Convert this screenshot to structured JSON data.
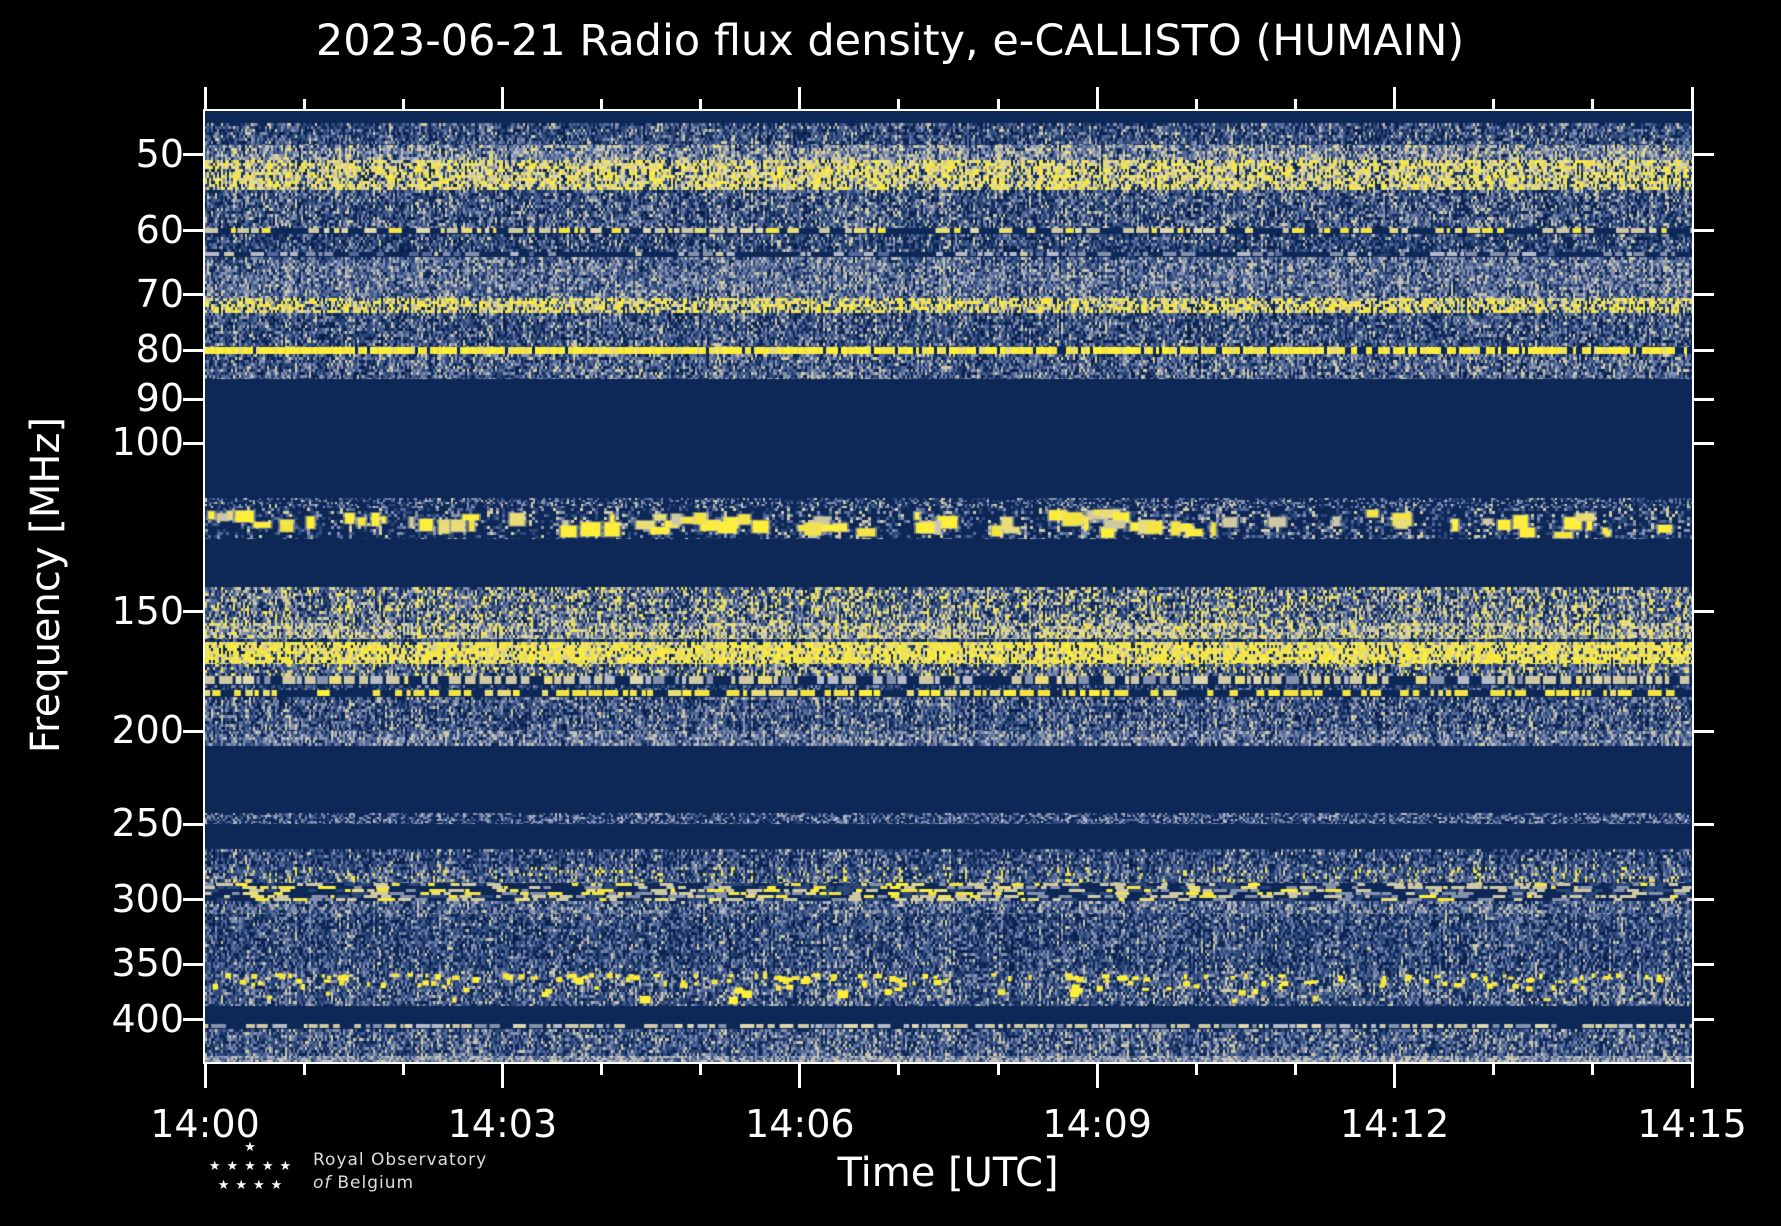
{
  "chart_data": {
    "type": "heatmap",
    "subtype": "radio-spectrogram",
    "title": "2023-06-21 Radio flux density, e-CALLISTO (HUMAIN)",
    "xlabel": "Time [UTC]",
    "ylabel": "Frequency [MHz]",
    "x_axis": {
      "major_ticks": [
        "14:00",
        "14:03",
        "14:06",
        "14:09",
        "14:12",
        "14:15"
      ],
      "major_tick_minutes": 3,
      "minor_tick_minutes": 1,
      "total_minutes": 15
    },
    "y_axis": {
      "scale": "log",
      "range_mhz": [
        45,
        443
      ],
      "tick_labels": [
        50,
        60,
        70,
        80,
        90,
        100,
        150,
        200,
        250,
        300,
        350,
        400
      ],
      "inverted": "frequency increases downward"
    },
    "background": "#000000",
    "frame_color": "#ffffff",
    "text_color": "#ffffff",
    "palette": {
      "dnavy": "#091d45",
      "navy": "#0d2757",
      "blue": "#2c4879",
      "steel": "#53689b",
      "grey": "#8591ac",
      "lgrey": "#b4bac7",
      "tan": "#cfc9a3",
      "ptan": "#e0d9b0",
      "pyel": "#e9dd78",
      "yel": "#f4e442",
      "byel": "#ffef3a"
    },
    "bands": [
      {
        "f0": 45.0,
        "f1": 46.3,
        "style": "solid",
        "color": "navy",
        "note": "dark strip at top edge"
      },
      {
        "f0": 46.3,
        "f1": 48.8,
        "style": "noise",
        "mix": [
          [
            "dnavy",
            5
          ],
          [
            "navy",
            28
          ],
          [
            "blue",
            27
          ],
          [
            "steel",
            19
          ],
          [
            "grey",
            16
          ],
          [
            "tan",
            5
          ]
        ]
      },
      {
        "f0": 48.8,
        "f1": 50.6,
        "style": "noise",
        "mix": [
          [
            "navy",
            8
          ],
          [
            "blue",
            16
          ],
          [
            "steel",
            18
          ],
          [
            "grey",
            24
          ],
          [
            "lgrey",
            10
          ],
          [
            "tan",
            18
          ],
          [
            "pyel",
            6
          ]
        ]
      },
      {
        "f0": 50.6,
        "f1": 54.4,
        "style": "noise",
        "note": "bright yellow streak band 51-54 MHz",
        "mix": [
          [
            "navy",
            9
          ],
          [
            "blue",
            13
          ],
          [
            "grey",
            12
          ],
          [
            "tan",
            16
          ],
          [
            "ptan",
            8
          ],
          [
            "pyel",
            14
          ],
          [
            "yel",
            21
          ],
          [
            "byel",
            7
          ]
        ]
      },
      {
        "f0": 54.4,
        "f1": 59.6,
        "style": "noise",
        "mix": [
          [
            "dnavy",
            4
          ],
          [
            "navy",
            25
          ],
          [
            "blue",
            25
          ],
          [
            "steel",
            19
          ],
          [
            "grey",
            17
          ],
          [
            "tan",
            10
          ]
        ]
      },
      {
        "f0": 59.6,
        "f1": 60.5,
        "style": "dashline",
        "note": "60 MHz dotted line",
        "mix": [
          [
            "skip",
            30
          ],
          [
            "tan",
            26
          ],
          [
            "ptan",
            14
          ],
          [
            "pyel",
            16
          ],
          [
            "yel",
            14
          ]
        ]
      },
      {
        "f0": 60.5,
        "f1": 63.2,
        "style": "noise",
        "mix": [
          [
            "dnavy",
            5
          ],
          [
            "navy",
            32
          ],
          [
            "blue",
            29
          ],
          [
            "steel",
            17
          ],
          [
            "grey",
            13
          ],
          [
            "tan",
            4
          ]
        ]
      },
      {
        "f0": 63.2,
        "f1": 63.9,
        "style": "dashline",
        "mix": [
          [
            "skip",
            34
          ],
          [
            "steel",
            14
          ],
          [
            "grey",
            30
          ],
          [
            "lgrey",
            16
          ],
          [
            "tan",
            6
          ]
        ]
      },
      {
        "f0": 63.9,
        "f1": 70.5,
        "style": "noise",
        "diag": true,
        "note": "herringbone interference 64-70 MHz",
        "mix": [
          [
            "navy",
            16
          ],
          [
            "blue",
            23
          ],
          [
            "steel",
            22
          ],
          [
            "grey",
            22
          ],
          [
            "lgrey",
            6
          ],
          [
            "tan",
            11
          ]
        ]
      },
      {
        "f0": 70.5,
        "f1": 73.2,
        "style": "noise",
        "note": "~72 MHz yellow dashes",
        "mix": [
          [
            "navy",
            12
          ],
          [
            "blue",
            15
          ],
          [
            "grey",
            12
          ],
          [
            "tan",
            14
          ],
          [
            "pyel",
            14
          ],
          [
            "yel",
            26
          ],
          [
            "byel",
            7
          ]
        ]
      },
      {
        "f0": 73.2,
        "f1": 79.4,
        "style": "noise",
        "mix": [
          [
            "dnavy",
            4
          ],
          [
            "navy",
            27
          ],
          [
            "blue",
            27
          ],
          [
            "steel",
            19
          ],
          [
            "grey",
            16
          ],
          [
            "tan",
            7
          ]
        ]
      },
      {
        "f0": 79.4,
        "f1": 80.7,
        "style": "line",
        "note": "80 MHz bright continuous carrier",
        "mix": [
          [
            "byel",
            55
          ],
          [
            "yel",
            35
          ],
          [
            "pyel",
            10
          ]
        ]
      },
      {
        "f0": 80.7,
        "f1": 85.7,
        "style": "noise",
        "mix": [
          [
            "dnavy",
            4
          ],
          [
            "navy",
            20
          ],
          [
            "blue",
            24
          ],
          [
            "steel",
            20
          ],
          [
            "grey",
            21
          ],
          [
            "tan",
            11
          ]
        ]
      },
      {
        "f0": 85.7,
        "f1": 114,
        "style": "solid",
        "color": "navy",
        "note": "FM broadcast notch, dark"
      },
      {
        "f0": 114,
        "f1": 117,
        "style": "noise",
        "cell": [
          2,
          2
        ],
        "mix": [
          [
            "navy",
            54
          ],
          [
            "blue",
            14
          ],
          [
            "steel",
            12
          ],
          [
            "grey",
            16
          ],
          [
            "tan",
            4
          ]
        ]
      },
      {
        "f0": 117,
        "f1": 126,
        "style": "blobs",
        "count": 85,
        "note": "airband bursts 118-126 MHz",
        "mix": [
          [
            "navy",
            60
          ],
          [
            "blue",
            15
          ],
          [
            "steel",
            9
          ],
          [
            "grey",
            10
          ],
          [
            "tan",
            6
          ]
        ]
      },
      {
        "f0": 126,
        "f1": 141.5,
        "style": "solid",
        "color": "navy"
      },
      {
        "f0": 141.5,
        "f1": 154,
        "style": "noise",
        "mix": [
          [
            "navy",
            19
          ],
          [
            "blue",
            20
          ],
          [
            "steel",
            14
          ],
          [
            "grey",
            18
          ],
          [
            "tan",
            14
          ],
          [
            "pyel",
            7
          ],
          [
            "yel",
            8
          ]
        ]
      },
      {
        "f0": 154,
        "f1": 160,
        "style": "noise",
        "note": "light band ~155 MHz",
        "mix": [
          [
            "navy",
            8
          ],
          [
            "blue",
            12
          ],
          [
            "steel",
            12
          ],
          [
            "grey",
            18
          ],
          [
            "tan",
            23
          ],
          [
            "ptan",
            6
          ],
          [
            "pyel",
            10
          ],
          [
            "yel",
            11
          ]
        ]
      },
      {
        "f0": 160,
        "f1": 161.5,
        "style": "noise",
        "mix": [
          [
            "navy",
            44
          ],
          [
            "blue",
            30
          ],
          [
            "steel",
            16
          ],
          [
            "grey",
            10
          ]
        ]
      },
      {
        "f0": 161.5,
        "f1": 170,
        "style": "noise",
        "note": "bright 162-169 MHz band",
        "mix": [
          [
            "navy",
            6
          ],
          [
            "blue",
            9
          ],
          [
            "grey",
            5
          ],
          [
            "tan",
            10
          ],
          [
            "pyel",
            16
          ],
          [
            "yel",
            37
          ],
          [
            "byel",
            17
          ]
        ]
      },
      {
        "f0": 170,
        "f1": 175,
        "style": "noise",
        "mix": [
          [
            "navy",
            22
          ],
          [
            "blue",
            24
          ],
          [
            "steel",
            16
          ],
          [
            "grey",
            16
          ],
          [
            "tan",
            12
          ],
          [
            "yel",
            10
          ]
        ]
      },
      {
        "f0": 175,
        "f1": 179,
        "style": "dashline",
        "mix": [
          [
            "skip",
            26
          ],
          [
            "grey",
            16
          ],
          [
            "lgrey",
            14
          ],
          [
            "tan",
            28
          ],
          [
            "ptan",
            8
          ],
          [
            "pyel",
            8
          ]
        ]
      },
      {
        "f0": 179,
        "f1": 181,
        "style": "noise",
        "mix": [
          [
            "navy",
            48
          ],
          [
            "blue",
            30
          ],
          [
            "steel",
            13
          ],
          [
            "grey",
            9
          ]
        ]
      },
      {
        "f0": 181,
        "f1": 184,
        "style": "dashline",
        "note": "~182 MHz yellow dotted line",
        "mix": [
          [
            "skip",
            30
          ],
          [
            "pyel",
            14
          ],
          [
            "yel",
            42
          ],
          [
            "byel",
            14
          ]
        ]
      },
      {
        "f0": 184,
        "f1": 200,
        "style": "noise",
        "mix": [
          [
            "dnavy",
            4
          ],
          [
            "navy",
            24
          ],
          [
            "blue",
            26
          ],
          [
            "steel",
            20
          ],
          [
            "grey",
            18
          ],
          [
            "tan",
            8
          ]
        ]
      },
      {
        "f0": 200,
        "f1": 207,
        "style": "noise",
        "mix": [
          [
            "navy",
            13
          ],
          [
            "blue",
            22
          ],
          [
            "steel",
            22
          ],
          [
            "grey",
            25
          ],
          [
            "lgrey",
            8
          ],
          [
            "tan",
            10
          ]
        ]
      },
      {
        "f0": 207,
        "f1": 243.5,
        "style": "solid",
        "color": "navy"
      },
      {
        "f0": 243.5,
        "f1": 250,
        "style": "noise",
        "cell": [
          2,
          2
        ],
        "note": "faint band ~245 MHz",
        "mix": [
          [
            "navy",
            42
          ],
          [
            "blue",
            16
          ],
          [
            "steel",
            16
          ],
          [
            "grey",
            20
          ],
          [
            "lgrey",
            6
          ]
        ]
      },
      {
        "f0": 250,
        "f1": 265.5,
        "style": "solid",
        "color": "navy"
      },
      {
        "f0": 265.5,
        "f1": 277,
        "style": "noise",
        "mix": [
          [
            "dnavy",
            5
          ],
          [
            "navy",
            30
          ],
          [
            "blue",
            28
          ],
          [
            "steel",
            20
          ],
          [
            "grey",
            15
          ],
          [
            "tan",
            2
          ]
        ]
      },
      {
        "f0": 277,
        "f1": 288,
        "style": "noise",
        "mix": [
          [
            "navy",
            24
          ],
          [
            "blue",
            26
          ],
          [
            "steel",
            18
          ],
          [
            "grey",
            17
          ],
          [
            "tan",
            8
          ],
          [
            "yel",
            7
          ]
        ]
      },
      {
        "f0": 288,
        "f1": 301,
        "style": "dashband",
        "fade": 0.75,
        "note": "~290 MHz bursts, strongest before 14:08",
        "mix": [
          [
            "skip",
            18
          ],
          [
            "navy",
            10
          ],
          [
            "blue",
            10
          ],
          [
            "grey",
            8
          ],
          [
            "tan",
            12
          ],
          [
            "pyel",
            13
          ],
          [
            "yel",
            21
          ],
          [
            "byel",
            8
          ]
        ]
      },
      {
        "f0": 301,
        "f1": 310,
        "style": "noise",
        "mix": [
          [
            "navy",
            19
          ],
          [
            "blue",
            24
          ],
          [
            "steel",
            20
          ],
          [
            "grey",
            23
          ],
          [
            "tan",
            12
          ],
          [
            "lgrey",
            2
          ]
        ]
      },
      {
        "f0": 310,
        "f1": 356,
        "style": "noise",
        "mix": [
          [
            "dnavy",
            4
          ],
          [
            "navy",
            29
          ],
          [
            "blue",
            28
          ],
          [
            "steel",
            20
          ],
          [
            "grey",
            17
          ],
          [
            "tan",
            2
          ]
        ]
      },
      {
        "f0": 356,
        "f1": 387,
        "style": "noise",
        "speckles": 170,
        "note": "sparse yellow bursts 356-385 MHz",
        "mix": [
          [
            "navy",
            27
          ],
          [
            "blue",
            26
          ],
          [
            "steel",
            18
          ],
          [
            "grey",
            19
          ],
          [
            "tan",
            10
          ]
        ]
      },
      {
        "f0": 387,
        "f1": 404,
        "style": "solid",
        "color": "navy"
      },
      {
        "f0": 404,
        "f1": 409,
        "style": "dashline",
        "note": "405 MHz light line",
        "mix": [
          [
            "skip",
            12
          ],
          [
            "grey",
            16
          ],
          [
            "lgrey",
            18
          ],
          [
            "tan",
            38
          ],
          [
            "ptan",
            16
          ]
        ]
      },
      {
        "f0": 409,
        "f1": 437,
        "style": "noise",
        "mix": [
          [
            "navy",
            24
          ],
          [
            "blue",
            26
          ],
          [
            "steel",
            20
          ],
          [
            "grey",
            20
          ],
          [
            "tan",
            10
          ]
        ]
      },
      {
        "f0": 437,
        "f1": 443,
        "style": "noise",
        "cell": [
          2,
          2
        ],
        "note": "light strip at bottom edge",
        "mix": [
          [
            "blue",
            14
          ],
          [
            "steel",
            20
          ],
          [
            "grey",
            30
          ],
          [
            "lgrey",
            18
          ],
          [
            "tan",
            18
          ]
        ]
      }
    ]
  },
  "logo": {
    "star_rows": [
      "★",
      "★★★★★",
      "★★★★"
    ],
    "line1": "Royal Observatory",
    "line2_italic": "of",
    "line2": "Belgium"
  }
}
